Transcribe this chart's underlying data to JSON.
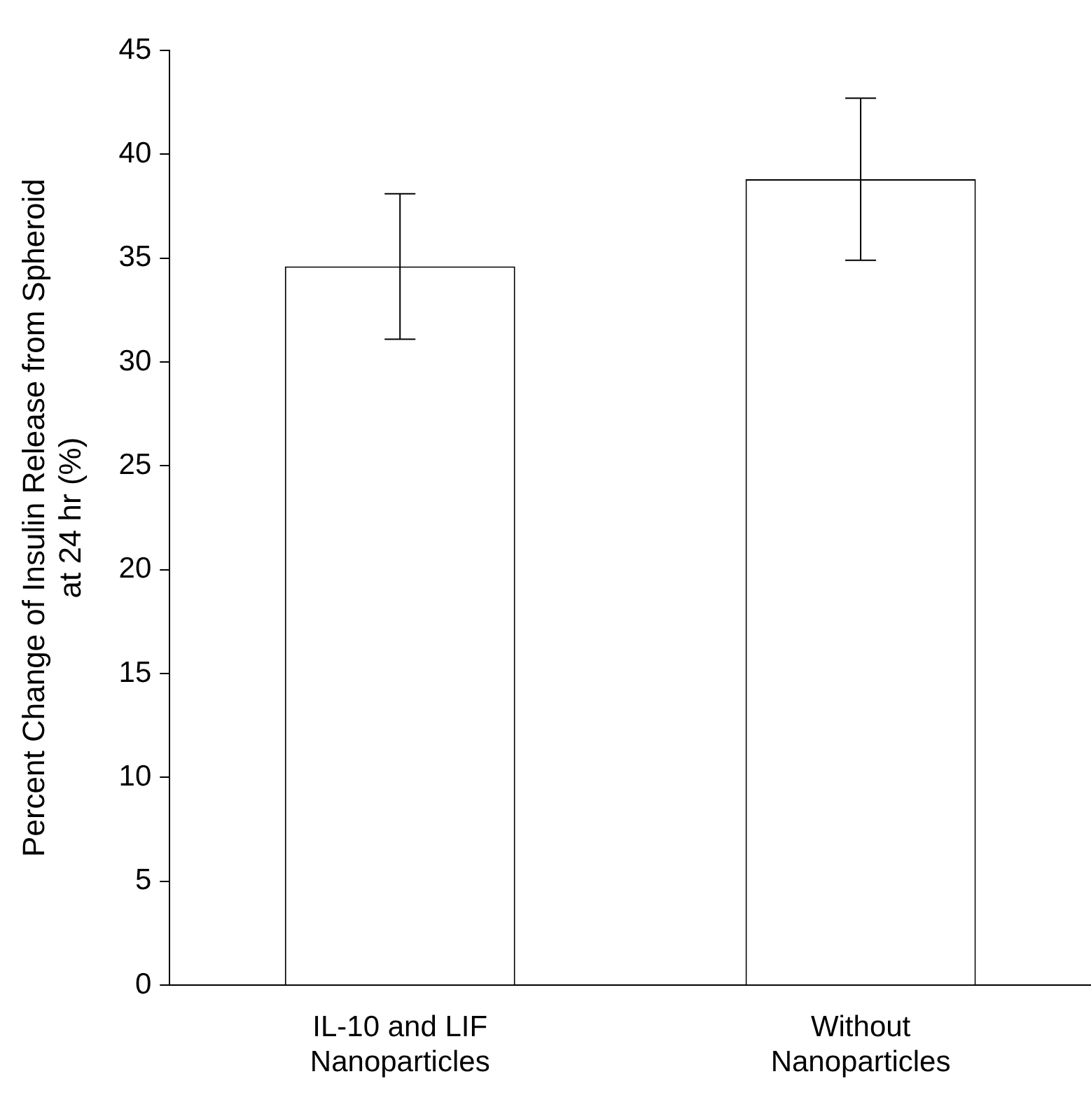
{
  "chart_data": {
    "type": "bar",
    "ylabel": "Percent Change of Insulin Release from Spheroid\nat 24 hr (%)",
    "categories": [
      "IL-10 and LIF Nanoparticles",
      "Without Nanoparticles"
    ],
    "values": [
      34.6,
      38.8
    ],
    "errors": [
      3.5,
      3.9
    ],
    "color": "#ffffff",
    "ylim": [
      0,
      45
    ],
    "yticks": [
      0,
      5,
      10,
      15,
      20,
      25,
      30,
      35,
      40,
      45
    ],
    "grid": false,
    "legend": false
  }
}
